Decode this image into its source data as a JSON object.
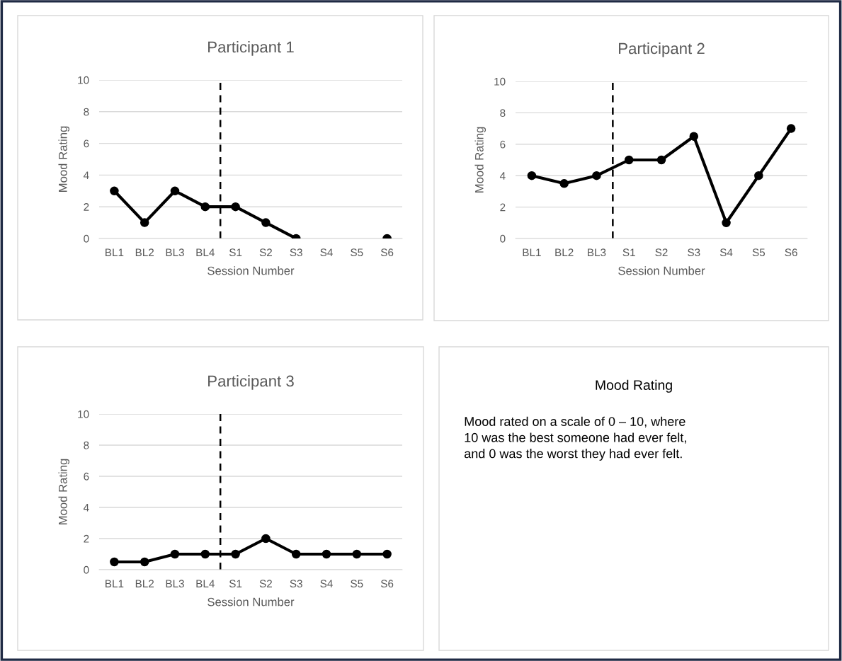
{
  "chart_data": [
    {
      "type": "line",
      "title": "Participant 1",
      "xlabel": "Session Number",
      "ylabel": "Mood Rating",
      "categories": [
        "BL1",
        "BL2",
        "BL3",
        "BL4",
        "S1",
        "S2",
        "S3",
        "S4",
        "S5",
        "S6"
      ],
      "series": [
        {
          "color": "#000000",
          "values": [
            3,
            1,
            3,
            2,
            2,
            1,
            0,
            null,
            null,
            0
          ]
        }
      ],
      "ylim": [
        0,
        10
      ],
      "yticks": [
        0,
        2,
        4,
        6,
        8,
        10
      ],
      "grid": "y",
      "legend": false,
      "marker": "circle",
      "line_style": "solid",
      "ref_lines": [
        {
          "axis": "x",
          "value": "S1",
          "color": "#000000",
          "line_style": "dashed"
        }
      ]
    },
    {
      "type": "line",
      "title": "Participant 2",
      "xlabel": "Session Number",
      "ylabel": "Mood Rating",
      "categories": [
        "BL1",
        "BL2",
        "BL3",
        "S1",
        "S2",
        "S3",
        "S4",
        "S5",
        "S6"
      ],
      "series": [
        {
          "color": "#000000",
          "values": [
            4,
            3.5,
            4,
            5,
            5,
            6.5,
            1,
            4,
            7
          ]
        }
      ],
      "ylim": [
        0,
        10
      ],
      "yticks": [
        0,
        2,
        4,
        6,
        8,
        10
      ],
      "grid": "y",
      "legend": false,
      "marker": "circle",
      "line_style": "solid",
      "ref_lines": [
        {
          "axis": "x",
          "value": "S1",
          "color": "#000000",
          "line_style": "dashed"
        }
      ]
    },
    {
      "type": "line",
      "title": "Participant 3",
      "xlabel": "Session Number",
      "ylabel": "Mood Rating",
      "categories": [
        "BL1",
        "BL2",
        "BL3",
        "BL4",
        "S1",
        "S2",
        "S3",
        "S4",
        "S5",
        "S6"
      ],
      "series": [
        {
          "color": "#000000",
          "values": [
            0.5,
            0.5,
            1,
            1,
            1,
            2,
            1,
            1,
            1,
            1
          ]
        }
      ],
      "ylim": [
        0,
        10
      ],
      "yticks": [
        0,
        2,
        4,
        6,
        8,
        10
      ],
      "grid": "y",
      "legend": false,
      "marker": "circle",
      "line_style": "solid",
      "ref_lines": [
        {
          "axis": "x",
          "value": "S1",
          "color": "#000000",
          "line_style": "dashed"
        }
      ]
    },
    {
      "type": "other",
      "title": "Mood Rating",
      "annotations": [
        "Mood rated on a scale of 0 – 10, where\n10 was the best someone had ever felt,\nand 0 was the worst they had ever felt."
      ]
    }
  ]
}
